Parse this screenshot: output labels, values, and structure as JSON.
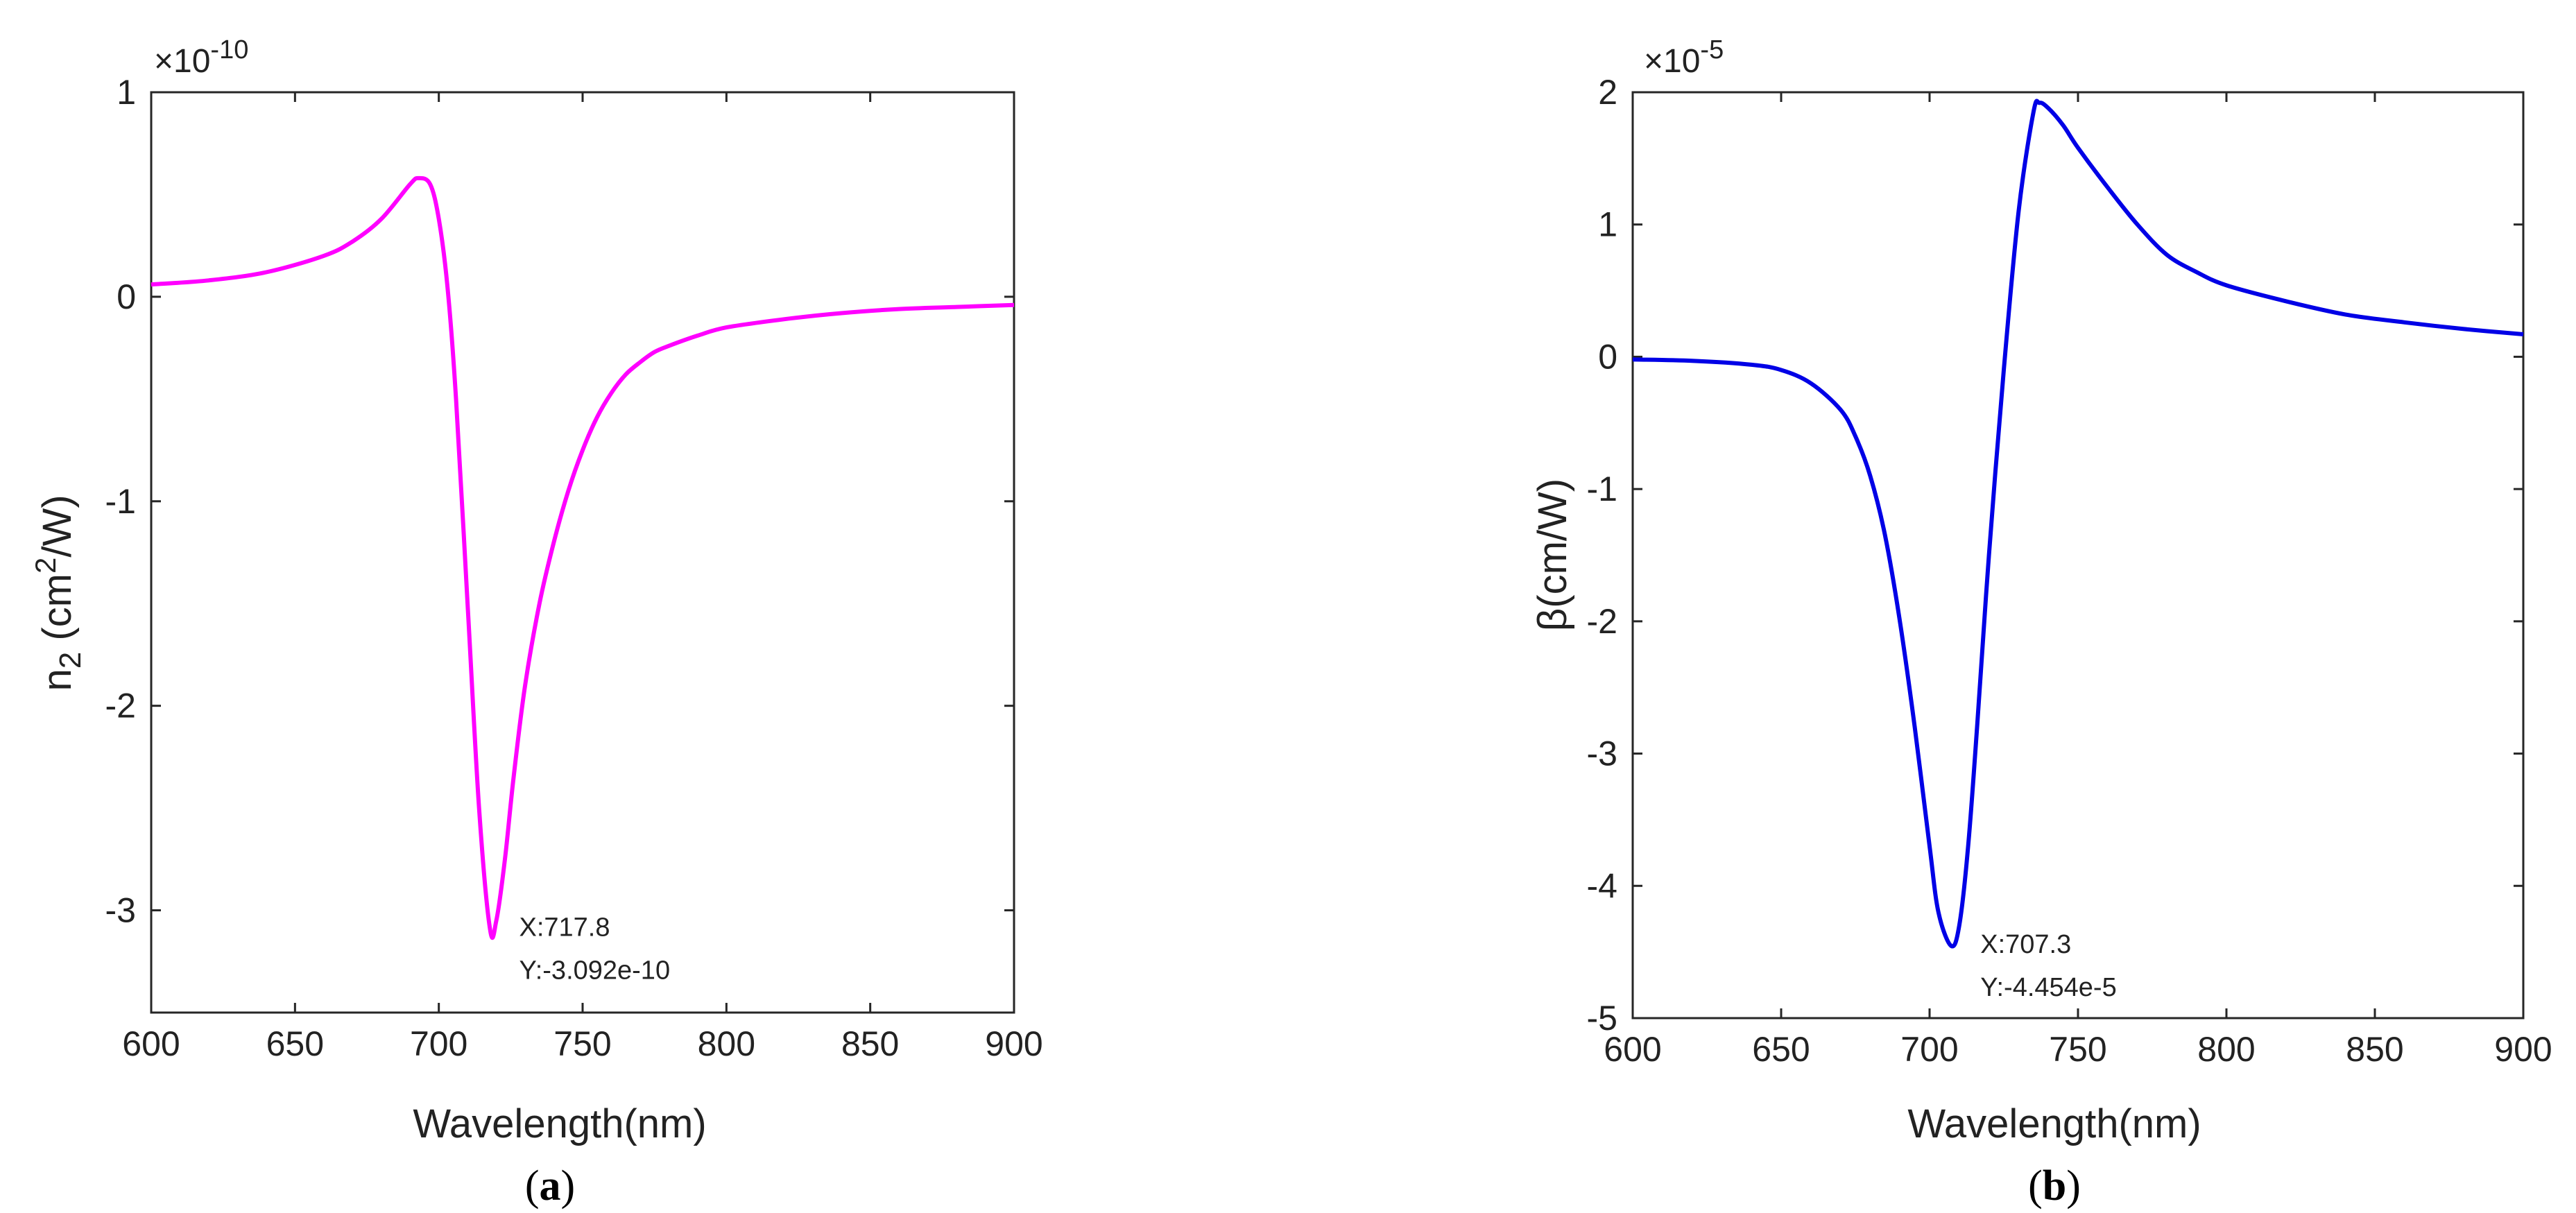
{
  "chart_data": [
    {
      "type": "line",
      "panel_label": {
        "open": "(",
        "letter": "a",
        "close": ")"
      },
      "multiplier": {
        "base": "×10",
        "exponent": "-10"
      },
      "xlabel": "Wavelength(nm)",
      "ylabel": {
        "main": "n",
        "sub": "2",
        "unit_pre": " (cm",
        "unit_sup": "2",
        "unit_post": "/W)"
      },
      "xlim": [
        600,
        900
      ],
      "ylim": [
        -3.5,
        1
      ],
      "x_ticks": [
        600,
        650,
        700,
        750,
        800,
        850,
        900
      ],
      "x_tick_labels": [
        "600",
        "650",
        "700",
        "750",
        "800",
        "850",
        "900"
      ],
      "y_ticks": [
        -3,
        -2,
        -1,
        0,
        1
      ],
      "y_tick_labels": [
        "-3",
        "-2",
        "-1",
        "0",
        "1"
      ],
      "series": [
        {
          "color": "#ff00ff",
          "x": [
            600,
            620,
            640,
            660,
            670,
            680,
            690,
            693,
            697,
            700,
            703,
            706,
            710,
            714,
            717.8,
            720,
            723,
            726,
            730,
            735,
            740,
            745,
            750,
            755,
            760,
            765,
            770,
            775,
            780,
            790,
            800,
            820,
            840,
            860,
            880,
            900
          ],
          "y": [
            0.06,
            0.08,
            0.12,
            0.2,
            0.27,
            0.38,
            0.55,
            0.58,
            0.55,
            0.38,
            0.05,
            -0.5,
            -1.5,
            -2.5,
            -3.092,
            -3.05,
            -2.75,
            -2.35,
            -1.9,
            -1.5,
            -1.2,
            -0.95,
            -0.75,
            -0.59,
            -0.47,
            -0.38,
            -0.32,
            -0.27,
            -0.24,
            -0.19,
            -0.15,
            -0.11,
            -0.08,
            -0.06,
            -0.05,
            -0.04
          ]
        }
      ],
      "datatip": {
        "x_text": "X:717.8",
        "y_text": "Y:-3.092e-10",
        "x": 717.8,
        "y": -3.092
      }
    },
    {
      "type": "line",
      "panel_label": {
        "open": "(",
        "letter": "b",
        "close": ")"
      },
      "multiplier": {
        "base": "×10",
        "exponent": "-5"
      },
      "xlabel": "Wavelength(nm)",
      "ylabel": {
        "main": "β(cm/W)"
      },
      "xlim": [
        600,
        900
      ],
      "ylim": [
        -5,
        2
      ],
      "x_ticks": [
        600,
        650,
        700,
        750,
        800,
        850,
        900
      ],
      "x_tick_labels": [
        "600",
        "650",
        "700",
        "750",
        "800",
        "850",
        "900"
      ],
      "y_ticks": [
        -5,
        -4,
        -3,
        -2,
        -1,
        0,
        1,
        2
      ],
      "y_tick_labels": [
        "-5",
        "-4",
        "-3",
        "-2",
        "-1",
        "0",
        "1",
        "2"
      ],
      "series": [
        {
          "color": "#0000e6",
          "x": [
            600,
            620,
            640,
            650,
            660,
            670,
            675,
            680,
            685,
            690,
            695,
            700,
            703,
            707.3,
            710,
            713,
            716,
            720,
            725,
            730,
            735,
            737,
            740,
            745,
            750,
            760,
            770,
            780,
            790,
            800,
            820,
            840,
            860,
            880,
            900
          ],
          "y": [
            -0.02,
            -0.03,
            -0.06,
            -0.1,
            -0.2,
            -0.4,
            -0.6,
            -0.9,
            -1.35,
            -2.0,
            -2.8,
            -3.7,
            -4.2,
            -4.454,
            -4.3,
            -3.7,
            -2.8,
            -1.5,
            -0.1,
            1.1,
            1.85,
            1.92,
            1.88,
            1.75,
            1.58,
            1.28,
            1.0,
            0.77,
            0.64,
            0.54,
            0.42,
            0.32,
            0.26,
            0.21,
            0.17
          ]
        }
      ],
      "datatip": {
        "x_text": "X:707.3",
        "y_text": "Y:-4.454e-5",
        "x": 707.3,
        "y": -4.454
      }
    }
  ]
}
